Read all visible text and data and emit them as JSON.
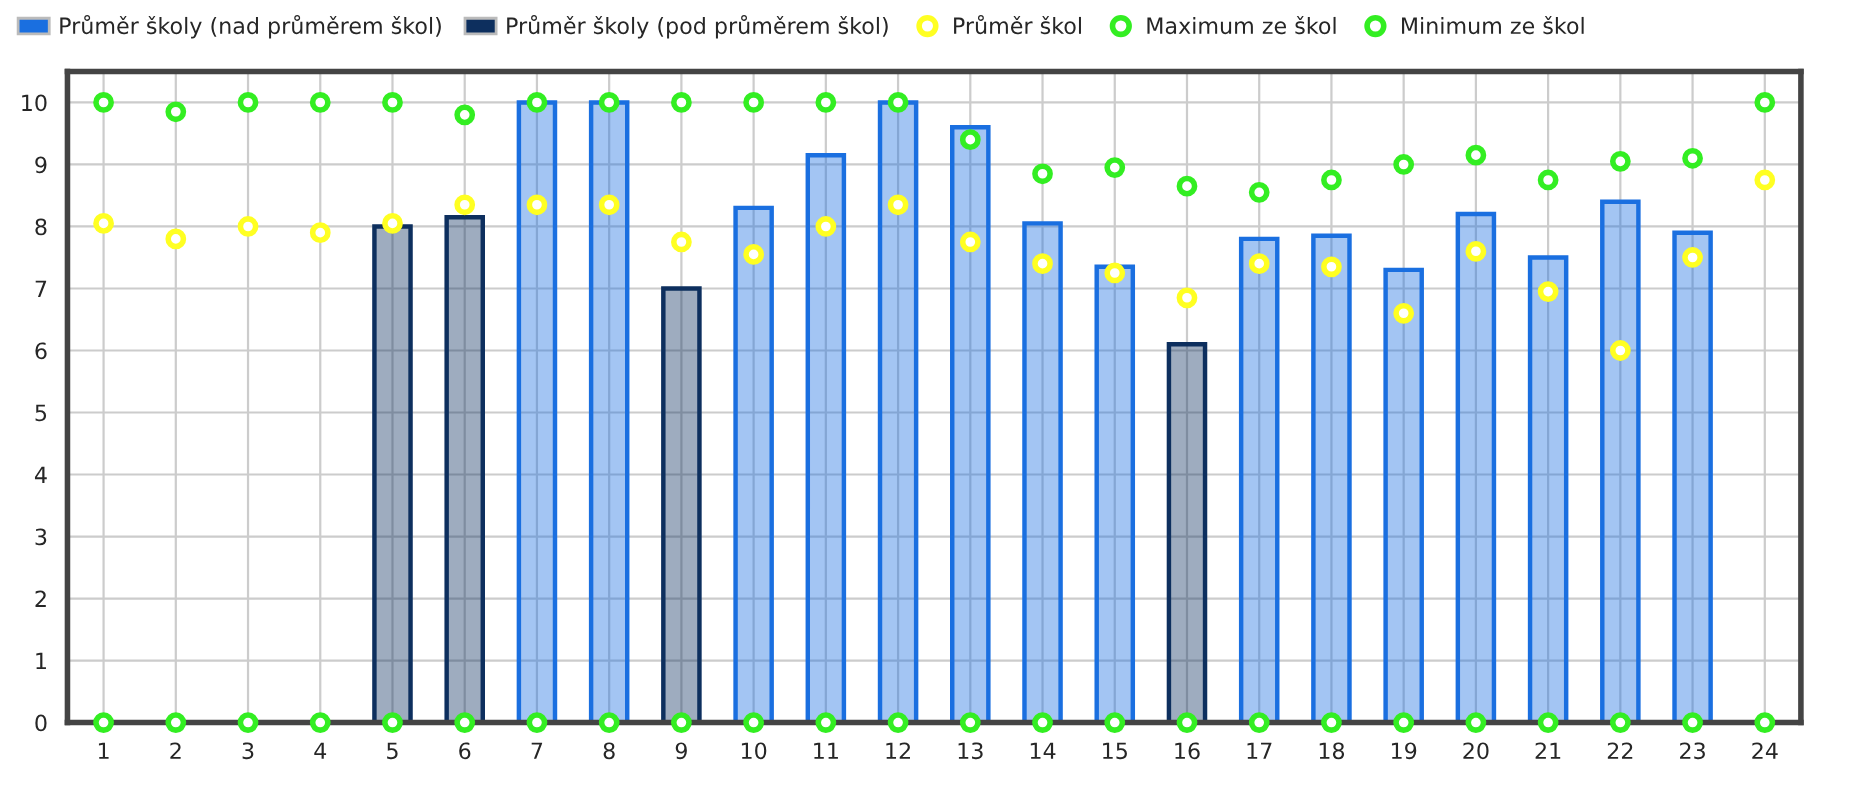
{
  "chart_data": {
    "type": "bar",
    "categories": [
      "1",
      "2",
      "3",
      "4",
      "5",
      "6",
      "7",
      "8",
      "9",
      "10",
      "11",
      "12",
      "13",
      "14",
      "15",
      "16",
      "17",
      "18",
      "19",
      "20",
      "21",
      "22",
      "23",
      "24"
    ],
    "series": [
      {
        "name": "Průměr školy (nad průměrem škol)",
        "color": "#1a6fe0",
        "values": [
          null,
          null,
          null,
          null,
          null,
          null,
          10,
          10,
          null,
          8.3,
          9.15,
          10,
          9.6,
          8.05,
          7.35,
          null,
          7.8,
          7.85,
          7.3,
          8.2,
          7.5,
          8.4,
          7.9,
          null
        ]
      },
      {
        "name": "Průměr školy (pod průměrem škol)",
        "color": "#0d2f5e",
        "values": [
          null,
          null,
          null,
          null,
          8.0,
          8.15,
          null,
          null,
          7.0,
          null,
          null,
          null,
          null,
          null,
          null,
          6.1,
          null,
          null,
          null,
          null,
          null,
          null,
          null,
          null
        ]
      },
      {
        "name": "Průměr škol",
        "type": "scatter",
        "color": "#ffff22",
        "values": [
          8.05,
          7.8,
          8.0,
          7.9,
          8.05,
          8.35,
          8.35,
          8.35,
          7.75,
          7.55,
          8.0,
          8.35,
          7.75,
          7.4,
          7.25,
          6.85,
          7.4,
          7.35,
          6.6,
          7.6,
          6.95,
          6.0,
          7.5,
          8.75
        ]
      },
      {
        "name": "Maximum ze škol",
        "type": "scatter",
        "color": "#33ee22",
        "values": [
          10,
          9.85,
          10,
          10,
          10,
          9.8,
          10,
          10,
          10,
          10,
          10,
          10,
          9.4,
          8.85,
          8.95,
          8.65,
          8.55,
          8.75,
          9.0,
          9.15,
          8.75,
          9.05,
          9.1,
          10
        ]
      },
      {
        "name": "Minimum ze škol",
        "type": "scatter",
        "color": "#33ee22",
        "values": [
          0,
          0,
          0,
          0,
          0,
          0,
          0,
          0,
          0,
          0,
          0,
          0,
          0,
          0,
          0,
          0,
          0,
          0,
          0,
          0,
          0,
          0,
          0,
          0
        ]
      }
    ],
    "ylim": [
      0,
      10.5
    ],
    "yticks": [
      0,
      1,
      2,
      3,
      4,
      5,
      6,
      7,
      8,
      9,
      10
    ],
    "grid": true,
    "legend": "top",
    "marker": "circle"
  }
}
